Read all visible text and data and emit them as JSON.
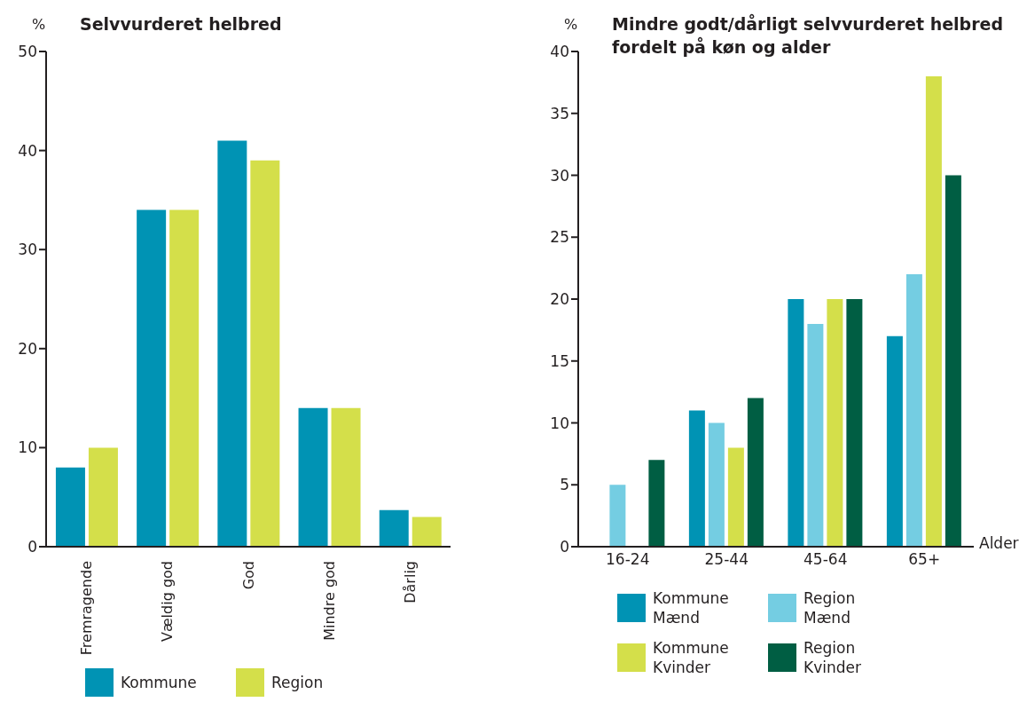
{
  "chart_data": [
    {
      "type": "bar",
      "title": "Selvvurderet helbred",
      "ylabel": "%",
      "categories": [
        "Fremragende",
        "Vældig god",
        "God",
        "Mindre god",
        "Dårlig"
      ],
      "series": [
        {
          "name": "Kommune",
          "color": "#0093b4",
          "values": [
            8,
            34,
            41,
            14,
            3.7
          ]
        },
        {
          "name": "Region",
          "color": "#d4df4a",
          "values": [
            10,
            34,
            39,
            14,
            3
          ]
        }
      ],
      "ylim": [
        0,
        50
      ],
      "yticks": [
        0,
        10,
        20,
        30,
        40,
        50
      ],
      "legend": "bottom"
    },
    {
      "type": "bar",
      "title": "Mindre godt/dårligt selvvurderet helbred fordelt på køn og alder",
      "ylabel": "%",
      "xlabel": "Alder",
      "categories": [
        "16-24",
        "25-44",
        "45-64",
        "65+"
      ],
      "series": [
        {
          "name": "Kommune Mænd",
          "color": "#0093b4",
          "values": [
            0,
            11,
            20,
            17
          ]
        },
        {
          "name": "Region Mænd",
          "color": "#74cde2",
          "values": [
            5,
            10,
            18,
            22
          ]
        },
        {
          "name": "Kommune Kvinder",
          "color": "#d4df4a",
          "values": [
            0,
            8,
            20,
            38
          ]
        },
        {
          "name": "Region Kvinder",
          "color": "#005e43",
          "values": [
            7,
            12,
            20,
            30
          ]
        }
      ],
      "ylim": [
        0,
        40
      ],
      "yticks": [
        0,
        5,
        10,
        15,
        20,
        25,
        30,
        35,
        40
      ],
      "legend": "bottom"
    }
  ]
}
